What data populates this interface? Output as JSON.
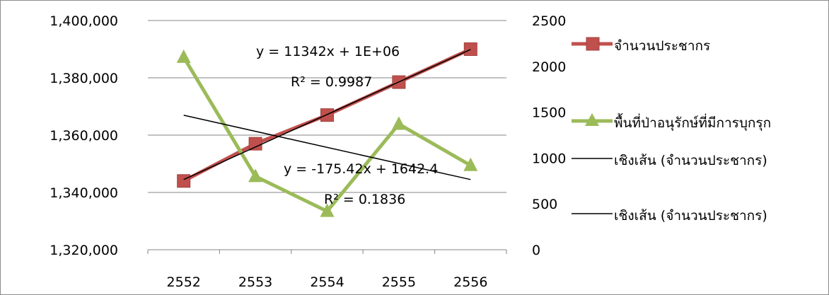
{
  "chart_data": {
    "type": "line",
    "categories": [
      "2552",
      "2553",
      "2554",
      "2555",
      "2556"
    ],
    "y_left": {
      "lim": [
        1320000,
        1400000
      ],
      "ticks": [
        "1,320,000",
        "1,340,000",
        "1,360,000",
        "1,380,000",
        "1,400,000"
      ]
    },
    "y_right": {
      "lim": [
        0,
        2500
      ],
      "ticks": [
        "0",
        "500",
        "1000",
        "1500",
        "2000",
        "2500"
      ]
    },
    "grid": "horizontal",
    "legend_position": "right",
    "series": [
      {
        "name": "จำนวนประชากร",
        "axis": "left",
        "values": [
          1344000,
          1357000,
          1367000,
          1378500,
          1390000
        ],
        "color": "#c0504d",
        "line_color": "#c0504d",
        "marker": "square"
      },
      {
        "name": "พื้นที่ป่าอนุรักษ์ที่มีการบุกรุก",
        "axis": "right",
        "values": [
          2100,
          800,
          420,
          1370,
          920
        ],
        "color": "#9bbb59",
        "line_color": "#9bbb59",
        "marker": "triangle"
      }
    ],
    "trendlines": [
      {
        "name": "เชิงเส้น (จำนวนประชากร)",
        "axis": "left",
        "color": "#000000",
        "start": 1344500,
        "end": 1389900,
        "equation": "y = 11342x + 1E+06",
        "r2": "R² = 0.9987"
      },
      {
        "name": "เชิงเส้น (จำนวนประชากร)",
        "axis": "right",
        "color": "#000000",
        "start": 1466.98,
        "end": 765.3,
        "equation": "y = -175.42x + 1642.4",
        "r2": "R² = 0.1836"
      }
    ]
  }
}
